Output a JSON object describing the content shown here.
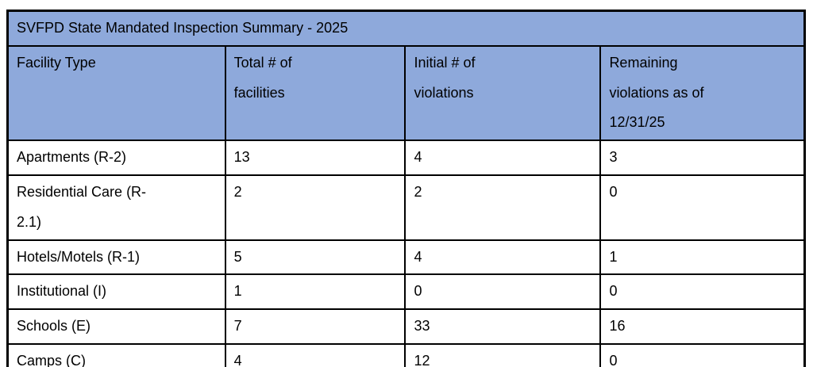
{
  "table": {
    "title": "SVFPD State Mandated Inspection Summary - 2025",
    "header": {
      "facility_type": "Facility Type",
      "total_facilities": "Total # of\nfacilities",
      "initial_violations": "Initial # of\nviolations",
      "remaining_violations": "Remaining\nviolations as of\n12/31/25"
    },
    "rows": [
      {
        "facility_type": "Apartments (R-2)",
        "total_facilities": "13",
        "initial_violations": "4",
        "remaining_violations": "3"
      },
      {
        "facility_type": "Residential Care (R-\n2.1)",
        "total_facilities": "2",
        "initial_violations": "2",
        "remaining_violations": "0"
      },
      {
        "facility_type": "Hotels/Motels (R-1)",
        "total_facilities": "5",
        "initial_violations": "4",
        "remaining_violations": "1"
      },
      {
        "facility_type": "Institutional (I)",
        "total_facilities": "1",
        "initial_violations": "0",
        "remaining_violations": "0"
      },
      {
        "facility_type": "Schools (E)",
        "total_facilities": "7",
        "initial_violations": "33",
        "remaining_violations": "16"
      },
      {
        "facility_type": "Camps (C)",
        "total_facilities": "4",
        "initial_violations": "12",
        "remaining_violations": "0"
      }
    ],
    "colors": {
      "header_background": "#8EA9DB",
      "border": "#000000",
      "text": "#000000",
      "body_background": "#FFFFFF"
    }
  }
}
